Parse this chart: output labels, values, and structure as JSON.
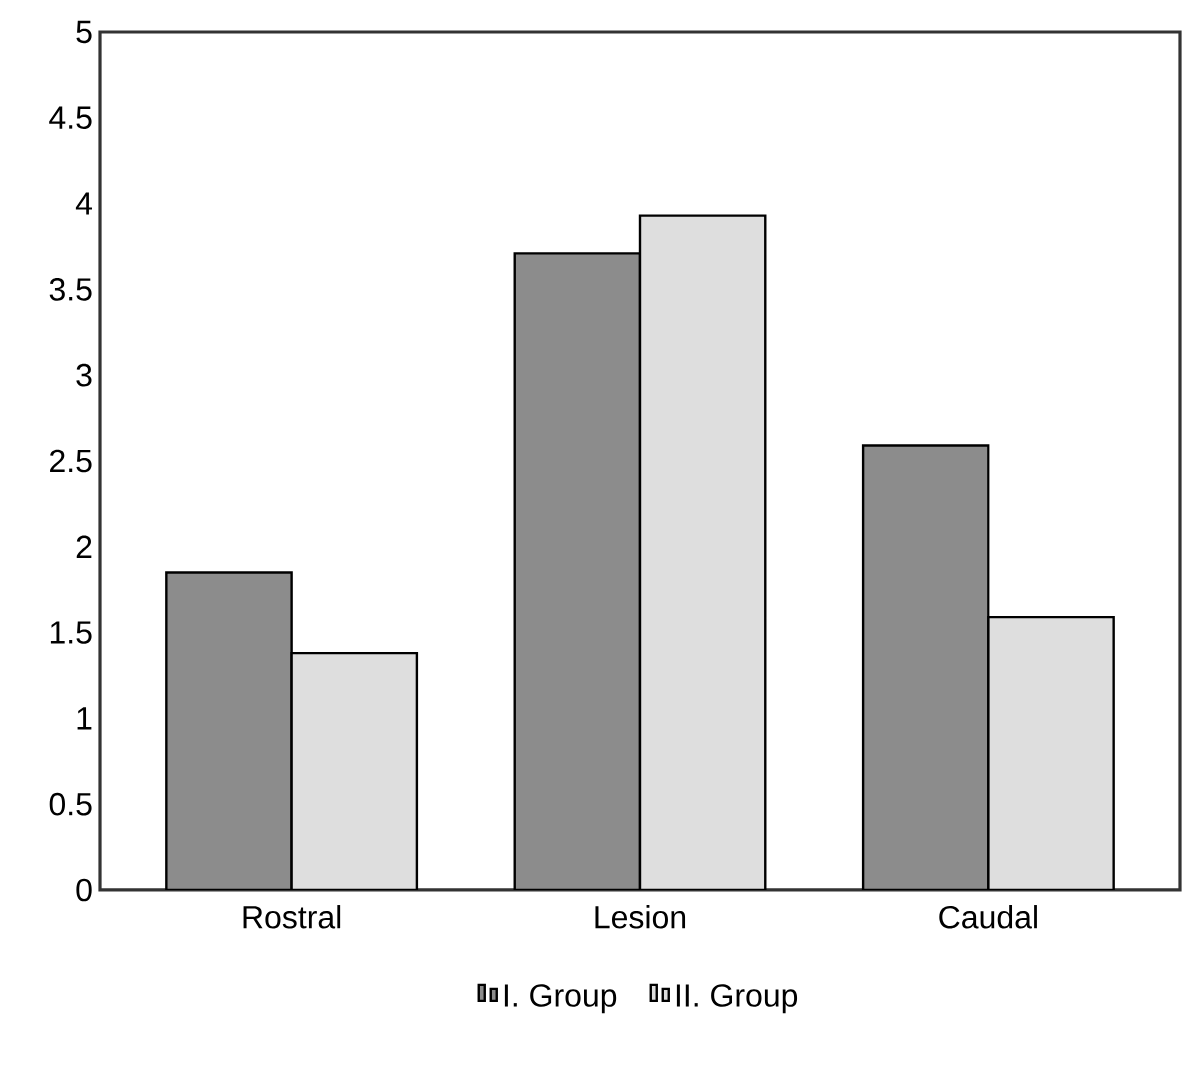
{
  "chart_data": {
    "type": "bar",
    "categories": [
      "Rostral",
      "Lesion",
      "Caudal"
    ],
    "series": [
      {
        "name": "I. Group",
        "color": "#8c8c8c",
        "values": [
          1.85,
          3.71,
          2.59
        ]
      },
      {
        "name": "II. Group",
        "color": "#dedede",
        "values": [
          1.38,
          3.93,
          1.59
        ]
      }
    ],
    "ylim": [
      0,
      5
    ],
    "yticks": [
      0,
      0.5,
      1,
      1.5,
      2,
      2.5,
      3,
      3.5,
      4,
      4.5,
      5
    ],
    "legend": "bottom"
  }
}
